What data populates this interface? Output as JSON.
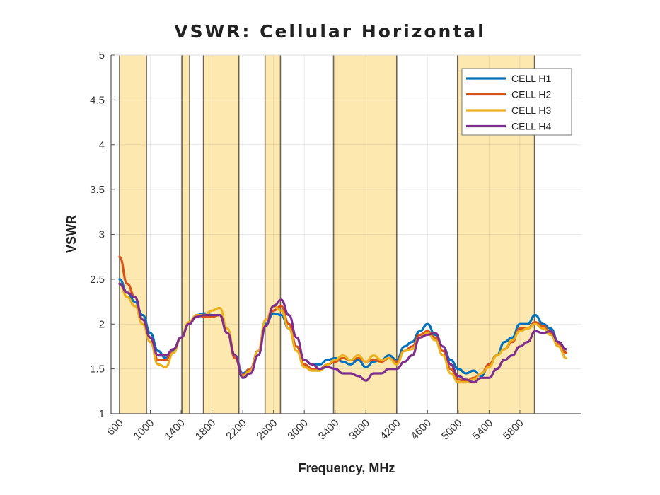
{
  "chart_data": {
    "type": "line",
    "title": "VSWR: Cellular Horizontal",
    "xlabel": "Frequency, MHz",
    "ylabel": "VSWR",
    "xlim": [
      490,
      6600
    ],
    "ylim": [
      1,
      5
    ],
    "xticks": [
      600,
      1000,
      1400,
      1800,
      2200,
      2600,
      3000,
      3400,
      3800,
      4200,
      4600,
      5000,
      5400,
      5800
    ],
    "yticks": [
      1,
      1.5,
      2,
      2.5,
      3,
      3.5,
      4,
      4.5,
      5
    ],
    "ytick_labels": [
      "1",
      "1.5",
      "2",
      "2.5",
      "3",
      "3.5",
      "4",
      "4.5",
      "5"
    ],
    "grid": true,
    "legend_position": "top-right",
    "highlight_bands": [
      [
        600,
        950
      ],
      [
        1410,
        1510
      ],
      [
        1690,
        2150
      ],
      [
        2490,
        2690
      ],
      [
        3380,
        4200
      ],
      [
        4990,
        5990
      ]
    ],
    "band_color": "#fde8b0",
    "series": [
      {
        "name": "CELL H1",
        "color": "#0072bd",
        "x": [
          600,
          700,
          800,
          900,
          1000,
          1100,
          1200,
          1300,
          1400,
          1500,
          1600,
          1700,
          1800,
          1900,
          2000,
          2100,
          2200,
          2300,
          2400,
          2500,
          2600,
          2700,
          2800,
          2900,
          3000,
          3100,
          3200,
          3300,
          3400,
          3500,
          3600,
          3700,
          3800,
          3900,
          4000,
          4100,
          4200,
          4300,
          4400,
          4500,
          4600,
          4700,
          4800,
          4900,
          5000,
          5100,
          5200,
          5300,
          5400,
          5500,
          5600,
          5700,
          5800,
          5900,
          6000,
          6100,
          6200,
          6300,
          6400
        ],
        "y": [
          2.5,
          2.35,
          2.25,
          2.1,
          1.9,
          1.7,
          1.62,
          1.7,
          1.85,
          2.0,
          2.1,
          2.12,
          2.1,
          2.1,
          1.9,
          1.65,
          1.45,
          1.5,
          1.7,
          2.0,
          2.12,
          2.1,
          1.95,
          1.75,
          1.6,
          1.55,
          1.55,
          1.6,
          1.62,
          1.58,
          1.55,
          1.6,
          1.52,
          1.58,
          1.6,
          1.65,
          1.6,
          1.75,
          1.8,
          1.92,
          2.0,
          1.88,
          1.75,
          1.6,
          1.5,
          1.45,
          1.48,
          1.42,
          1.55,
          1.65,
          1.8,
          1.85,
          2.0,
          2.0,
          2.1,
          2.0,
          1.95,
          1.8,
          1.72
        ]
      },
      {
        "name": "CELL H2",
        "color": "#d95319",
        "x": [
          600,
          700,
          800,
          900,
          1000,
          1100,
          1200,
          1300,
          1400,
          1500,
          1600,
          1700,
          1800,
          1900,
          2000,
          2100,
          2200,
          2300,
          2400,
          2500,
          2600,
          2700,
          2800,
          2900,
          3000,
          3100,
          3200,
          3300,
          3400,
          3500,
          3600,
          3700,
          3800,
          3900,
          4000,
          4100,
          4200,
          4300,
          4400,
          4500,
          4600,
          4700,
          4800,
          4900,
          5000,
          5100,
          5200,
          5300,
          5400,
          5500,
          5600,
          5700,
          5800,
          5900,
          6000,
          6100,
          6200,
          6300,
          6400
        ],
        "y": [
          2.75,
          2.45,
          2.3,
          2.05,
          1.85,
          1.6,
          1.6,
          1.72,
          1.85,
          2.0,
          2.1,
          2.08,
          2.08,
          2.1,
          1.9,
          1.62,
          1.43,
          1.5,
          1.7,
          2.05,
          2.15,
          2.2,
          2.0,
          1.75,
          1.55,
          1.5,
          1.5,
          1.55,
          1.58,
          1.62,
          1.6,
          1.62,
          1.58,
          1.6,
          1.58,
          1.62,
          1.58,
          1.7,
          1.75,
          1.88,
          1.92,
          1.85,
          1.7,
          1.5,
          1.38,
          1.36,
          1.4,
          1.45,
          1.55,
          1.65,
          1.72,
          1.8,
          1.95,
          1.95,
          2.02,
          1.98,
          1.9,
          1.78,
          1.68
        ]
      },
      {
        "name": "CELL H3",
        "color": "#edb120",
        "x": [
          600,
          700,
          800,
          900,
          1000,
          1100,
          1200,
          1300,
          1400,
          1500,
          1600,
          1700,
          1800,
          1900,
          2000,
          2100,
          2200,
          2300,
          2400,
          2500,
          2600,
          2700,
          2800,
          2900,
          3000,
          3100,
          3200,
          3300,
          3400,
          3500,
          3600,
          3700,
          3800,
          3900,
          4000,
          4100,
          4200,
          4300,
          4400,
          4500,
          4600,
          4700,
          4800,
          4900,
          5000,
          5100,
          5200,
          5300,
          5400,
          5500,
          5600,
          5700,
          5800,
          5900,
          6000,
          6100,
          6200,
          6300,
          6400
        ],
        "y": [
          2.45,
          2.3,
          2.2,
          2.0,
          1.8,
          1.55,
          1.52,
          1.68,
          1.85,
          2.02,
          2.1,
          2.1,
          2.15,
          2.18,
          1.95,
          1.65,
          1.42,
          1.48,
          1.7,
          2.05,
          2.2,
          2.15,
          1.95,
          1.7,
          1.52,
          1.48,
          1.48,
          1.55,
          1.6,
          1.65,
          1.6,
          1.65,
          1.58,
          1.65,
          1.6,
          1.62,
          1.55,
          1.7,
          1.72,
          1.85,
          1.9,
          1.82,
          1.65,
          1.45,
          1.35,
          1.35,
          1.38,
          1.45,
          1.52,
          1.65,
          1.72,
          1.82,
          1.92,
          1.95,
          2.0,
          1.95,
          1.88,
          1.75,
          1.62
        ]
      },
      {
        "name": "CELL H4",
        "color": "#7e2f8e",
        "x": [
          600,
          700,
          800,
          900,
          1000,
          1100,
          1200,
          1300,
          1400,
          1500,
          1600,
          1700,
          1800,
          1900,
          2000,
          2100,
          2200,
          2300,
          2400,
          2500,
          2600,
          2700,
          2800,
          2900,
          3000,
          3100,
          3200,
          3300,
          3400,
          3500,
          3600,
          3700,
          3800,
          3900,
          4000,
          4100,
          4200,
          4300,
          4400,
          4500,
          4600,
          4700,
          4800,
          4900,
          5000,
          5100,
          5200,
          5300,
          5400,
          5500,
          5600,
          5700,
          5800,
          5900,
          6000,
          6100,
          6200,
          6300,
          6400
        ],
        "y": [
          2.45,
          2.35,
          2.3,
          2.05,
          1.85,
          1.65,
          1.65,
          1.72,
          1.85,
          2.0,
          2.08,
          2.1,
          2.1,
          2.1,
          1.9,
          1.65,
          1.4,
          1.45,
          1.65,
          1.98,
          2.2,
          2.27,
          2.1,
          1.85,
          1.6,
          1.55,
          1.5,
          1.52,
          1.5,
          1.45,
          1.45,
          1.42,
          1.37,
          1.45,
          1.45,
          1.5,
          1.5,
          1.58,
          1.65,
          1.85,
          1.88,
          1.9,
          1.75,
          1.55,
          1.42,
          1.38,
          1.35,
          1.4,
          1.4,
          1.5,
          1.6,
          1.65,
          1.75,
          1.8,
          1.92,
          1.9,
          1.92,
          1.8,
          1.72
        ]
      }
    ]
  }
}
